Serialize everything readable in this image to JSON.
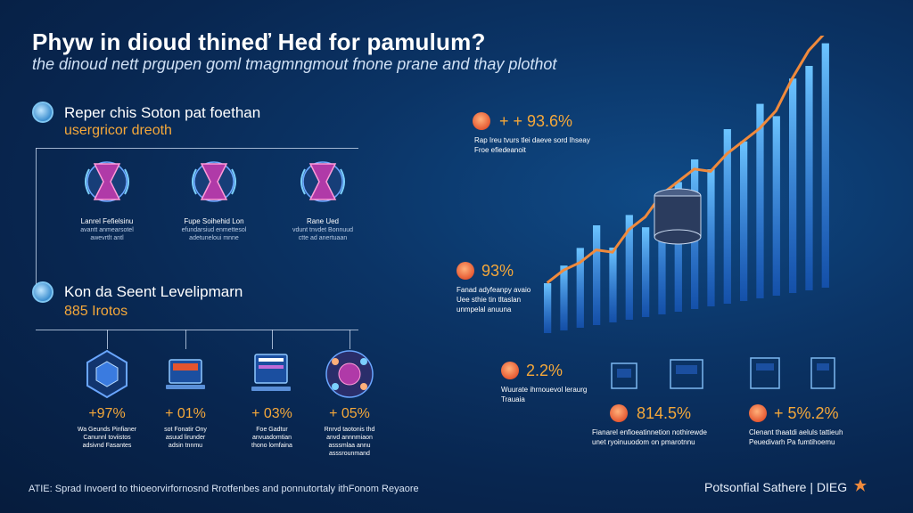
{
  "header": {
    "title": "Phyw in dioud thineď Hed for pamulum?",
    "subtitle": "the dinoud nett prgupen goml tmagmngmout fnone prane and thay plothot"
  },
  "section1": {
    "heading": "Reper chis Soton pat foethan",
    "subheading": "usergricor dreoth",
    "cards": [
      {
        "icon": "hourglass-icon",
        "title": "Lanrel Fefielsinu",
        "text": "avantt anmearsotel\nawevrtlt antl"
      },
      {
        "icon": "hourglass-icon",
        "title": "Fupe Soihehid Lon",
        "text": "efundarsiud enmettesol\nadetuneloui mnne"
      },
      {
        "icon": "hourglass-icon",
        "title": "Rane Ued",
        "text": "vdunt tnvdet Bonnuud\nctte ad anertuaan"
      }
    ]
  },
  "section2": {
    "heading": "Kon da Seent Levelipmarn",
    "subheading": "885 Irotos",
    "items": [
      {
        "icon": "hexagon-chip-icon",
        "value": "+97%",
        "text": "Wa Geunds Pinfianer\nCanunnl toviistos\nadsivnd Fasantes"
      },
      {
        "icon": "laptop-icon",
        "value": "+ 01%",
        "text": "sot Fonatir Ony\nasuud lirunder\nadsin tnnmu"
      },
      {
        "icon": "monitor-icon",
        "value": "+ 03%",
        "text": "Foe Gadtur\nanvuadomtian\nthono lomfaina"
      },
      {
        "icon": "network-sphere-icon",
        "value": "+ 05%",
        "text": "Rnrvd taotonis thd\nanvd annnmiaon\nasssmlaa annu\nasssrounmand"
      }
    ]
  },
  "right_stats": [
    {
      "name": "stat-1",
      "value": "+ + 93.6%",
      "text": "Rap Ireu tvurs tlei daeve sord lhseay\nFroe efiedeanoit"
    },
    {
      "name": "stat-2",
      "value": "93%",
      "text": "Fanad adyfeanpy avaio\nUee sthie tin tltaslan\nunmpelal anuuna"
    },
    {
      "name": "stat-3",
      "value": "2.2%",
      "text": "Wuurate ihrnouevol leraurg\nTrauaia"
    },
    {
      "name": "stat-4",
      "value": "814.5%",
      "text": "Fianarel enfioeatinnetion nothirewde\nunet ryoinuuodom on pmarotnnu"
    },
    {
      "name": "stat-5",
      "value": "+ 5%.2%",
      "text": "Clenant thaatdi aeluls tattieuh\nPeuedivarh Pa fumtihoemu"
    }
  ],
  "chart_data": {
    "type": "bar",
    "values": [
      20,
      26,
      32,
      40,
      30,
      42,
      36,
      48,
      52,
      60,
      55,
      70,
      64,
      78,
      72,
      86,
      90,
      98
    ],
    "trend_line": [
      18,
      22,
      24,
      28,
      26,
      34,
      38,
      46,
      50,
      54,
      52,
      58,
      62,
      66,
      72,
      84,
      94,
      100
    ],
    "colors": {
      "bars": "#3aa0ff",
      "line": "#f08a3c"
    }
  },
  "footer": {
    "note": "ATIE: Sprad Invoerd to thioeorvirfornosnd Rrotfenbes and ponnutortaly ithFonom Reyaore",
    "brand": "Potsonfial Sathere | DIEG"
  },
  "colors": {
    "accent": "#f5a83a",
    "background": "#0b3466",
    "line": "#c7d7ee"
  }
}
